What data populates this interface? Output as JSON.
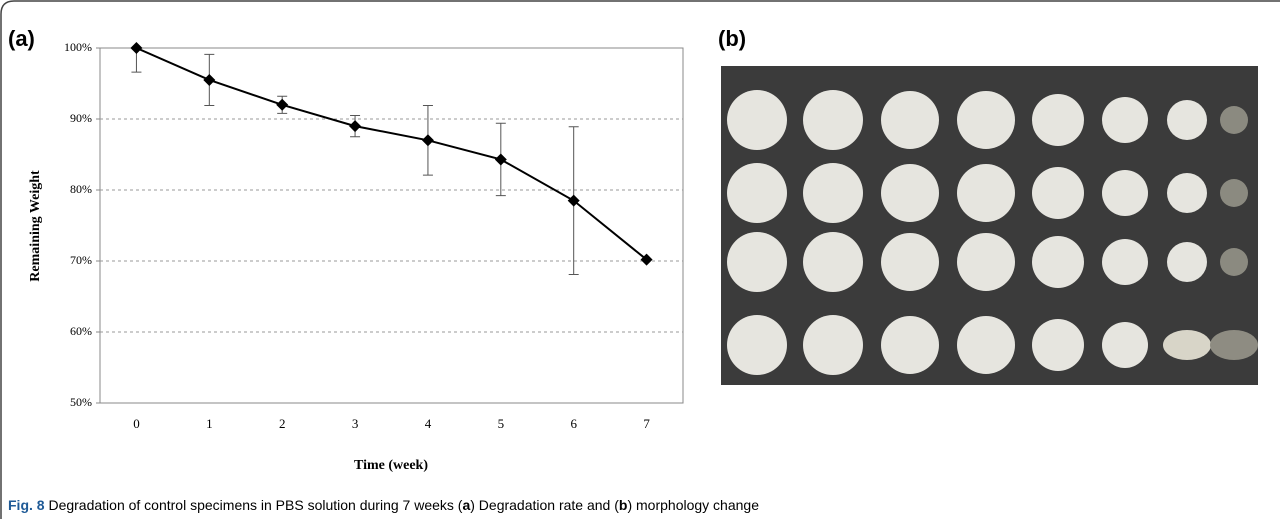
{
  "panel_a_label": "(a)",
  "panel_b_label": "(b)",
  "chart_data": {
    "type": "line",
    "x_label": "Time (week)",
    "y_label": "Remaining Weight",
    "categories": [
      "0",
      "1",
      "2",
      "3",
      "4",
      "5",
      "6",
      "7"
    ],
    "series": [
      {
        "name": "Remaining Weight",
        "color": "#000000",
        "values": [
          100,
          95.5,
          92,
          89,
          87,
          84.3,
          78.5,
          70.2
        ],
        "errors": [
          3.4,
          3.6,
          1.2,
          1.5,
          4.9,
          5.1,
          10.4,
          0
        ]
      }
    ],
    "ylim": [
      50,
      100
    ],
    "yticks": [
      {
        "value": 50,
        "label": "50%"
      },
      {
        "value": 60,
        "label": "60%"
      },
      {
        "value": 70,
        "label": "70%"
      },
      {
        "value": 80,
        "label": "80%"
      },
      {
        "value": 90,
        "label": "90%"
      },
      {
        "value": 100,
        "label": "100%"
      }
    ],
    "grid": true
  },
  "caption": {
    "label": "Fig. 8",
    "parts": [
      "Degradation of control specimens in PBS solution during 7 weeks (",
      "a",
      ") Degradation rate and (",
      "b",
      ") morphology change"
    ]
  }
}
